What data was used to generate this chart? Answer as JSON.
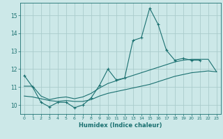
{
  "xlabel": "Humidex (Indice chaleur)",
  "background_color": "#cce8e8",
  "grid_color": "#aacccc",
  "line_color": "#1a7070",
  "xlim": [
    -0.5,
    23.5
  ],
  "ylim": [
    9.5,
    15.7
  ],
  "yticks": [
    10,
    11,
    12,
    13,
    14,
    15
  ],
  "xticks": [
    0,
    1,
    2,
    3,
    4,
    5,
    6,
    7,
    8,
    9,
    10,
    11,
    12,
    13,
    14,
    15,
    16,
    17,
    18,
    19,
    20,
    21,
    22,
    23
  ],
  "main_x": [
    0,
    1,
    2,
    3,
    4,
    5,
    6,
    7,
    8,
    9,
    10,
    11,
    12,
    13,
    14,
    15,
    16,
    17,
    18,
    19,
    20,
    21
  ],
  "main_y": [
    11.65,
    11.0,
    10.15,
    9.9,
    10.15,
    10.15,
    9.85,
    10.0,
    10.4,
    11.1,
    12.0,
    11.4,
    11.5,
    13.6,
    13.75,
    15.4,
    14.5,
    13.05,
    12.5,
    12.6,
    12.5,
    12.5
  ],
  "line2_x": [
    0,
    1,
    2,
    3,
    4,
    5,
    6,
    7,
    8,
    9,
    10,
    11,
    12,
    13,
    14,
    15,
    16,
    17,
    18,
    19,
    20,
    21,
    22,
    23
  ],
  "line2_y": [
    11.05,
    11.05,
    10.5,
    10.3,
    10.4,
    10.45,
    10.35,
    10.45,
    10.65,
    10.95,
    11.2,
    11.35,
    11.5,
    11.65,
    11.8,
    11.95,
    12.1,
    12.25,
    12.4,
    12.5,
    12.55,
    12.55,
    12.55,
    11.85
  ],
  "line3_x": [
    0,
    1,
    2,
    3,
    4,
    5,
    6,
    7,
    8,
    9,
    10,
    11,
    12,
    13,
    14,
    15,
    16,
    17,
    18,
    19,
    20,
    21,
    22,
    23
  ],
  "line3_y": [
    10.5,
    10.45,
    10.35,
    10.25,
    10.2,
    10.25,
    10.2,
    10.2,
    10.3,
    10.5,
    10.65,
    10.75,
    10.85,
    10.95,
    11.05,
    11.15,
    11.3,
    11.45,
    11.6,
    11.7,
    11.8,
    11.85,
    11.9,
    11.85
  ]
}
